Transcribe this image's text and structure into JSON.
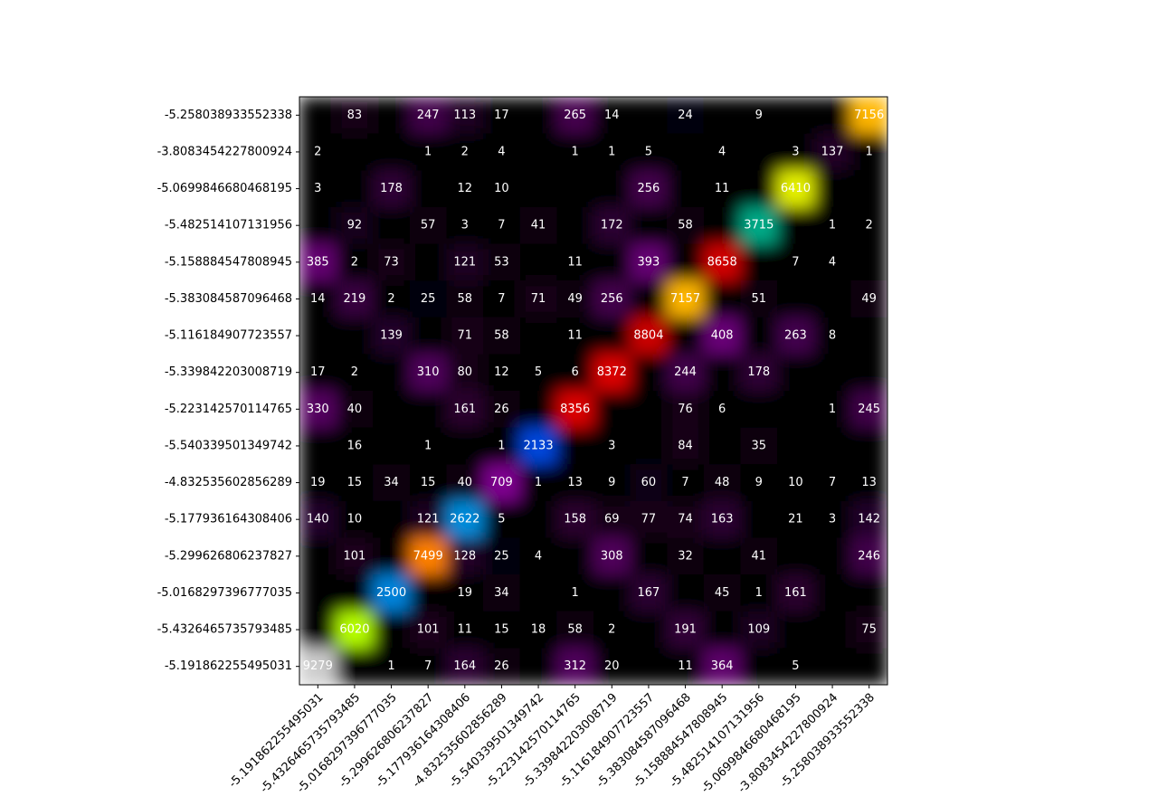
{
  "chart_data": {
    "type": "heatmap",
    "colormap": "nipy_spectral",
    "x_categories": [
      "-5.191862255495031",
      "-5.4326465735793485",
      "-5.0168297396777035",
      "-5.299626806237827",
      "-5.177936164308406",
      "-4.832535602856289",
      "-5.540339501349742",
      "-5.223142570114765",
      "-5.339842203008719",
      "-5.116184907723557",
      "-5.383084587096468",
      "-5.158884547808945",
      "-5.482514107131956",
      "-5.0699846680468195",
      "-3.8083454227800924",
      "-5.258038933552338"
    ],
    "y_categories": [
      "-5.258038933552338",
      "-3.8083454227800924",
      "-5.0699846680468195",
      "-5.482514107131956",
      "-5.158884547808945",
      "-5.383084587096468",
      "-5.116184907723557",
      "-5.339842203008719",
      "-5.223142570114765",
      "-5.540339501349742",
      "-4.832535602856289",
      "-5.177936164308406",
      "-5.299626806237827",
      "-5.0168297396777035",
      "-5.4326465735793485",
      "-5.191862255495031"
    ],
    "z": [
      [
        0,
        83,
        0,
        247,
        113,
        17,
        0,
        265,
        14,
        0,
        24,
        0,
        9,
        0,
        0,
        7156
      ],
      [
        2,
        0,
        0,
        1,
        2,
        4,
        0,
        1,
        1,
        5,
        0,
        4,
        0,
        3,
        137,
        1
      ],
      [
        3,
        0,
        178,
        0,
        12,
        10,
        0,
        0,
        0,
        256,
        0,
        11,
        0,
        6410,
        0,
        0
      ],
      [
        0,
        92,
        0,
        57,
        3,
        7,
        41,
        0,
        172,
        0,
        58,
        0,
        3715,
        0,
        1,
        2
      ],
      [
        385,
        2,
        73,
        0,
        121,
        53,
        0,
        11,
        0,
        393,
        0,
        8658,
        0,
        7,
        4,
        0
      ],
      [
        14,
        219,
        2,
        25,
        58,
        7,
        71,
        49,
        256,
        0,
        7157,
        0,
        51,
        0,
        0,
        49
      ],
      [
        0,
        0,
        139,
        0,
        71,
        58,
        0,
        11,
        0,
        8804,
        0,
        408,
        0,
        263,
        8,
        0
      ],
      [
        17,
        2,
        0,
        310,
        80,
        12,
        5,
        6,
        8372,
        0,
        244,
        0,
        178,
        0,
        0,
        0
      ],
      [
        330,
        40,
        0,
        0,
        161,
        26,
        0,
        8356,
        0,
        0,
        76,
        6,
        0,
        0,
        1,
        245
      ],
      [
        0,
        16,
        0,
        1,
        0,
        1,
        2133,
        0,
        3,
        0,
        84,
        0,
        35,
        0,
        0,
        0
      ],
      [
        19,
        15,
        34,
        15,
        40,
        709,
        1,
        13,
        9,
        60,
        7,
        48,
        9,
        10,
        7,
        13
      ],
      [
        140,
        10,
        0,
        121,
        2622,
        5,
        0,
        158,
        69,
        77,
        74,
        163,
        0,
        21,
        3,
        142
      ],
      [
        0,
        101,
        0,
        7499,
        128,
        25,
        4,
        0,
        308,
        0,
        32,
        0,
        41,
        0,
        0,
        246
      ],
      [
        0,
        0,
        2500,
        0,
        19,
        34,
        0,
        1,
        0,
        167,
        0,
        45,
        1,
        161,
        0,
        0
      ],
      [
        0,
        6020,
        0,
        101,
        11,
        15,
        18,
        58,
        2,
        0,
        191,
        0,
        109,
        0,
        0,
        75
      ],
      [
        9279,
        0,
        1,
        7,
        164,
        26,
        0,
        312,
        20,
        0,
        11,
        364,
        0,
        5,
        0,
        0
      ]
    ]
  }
}
